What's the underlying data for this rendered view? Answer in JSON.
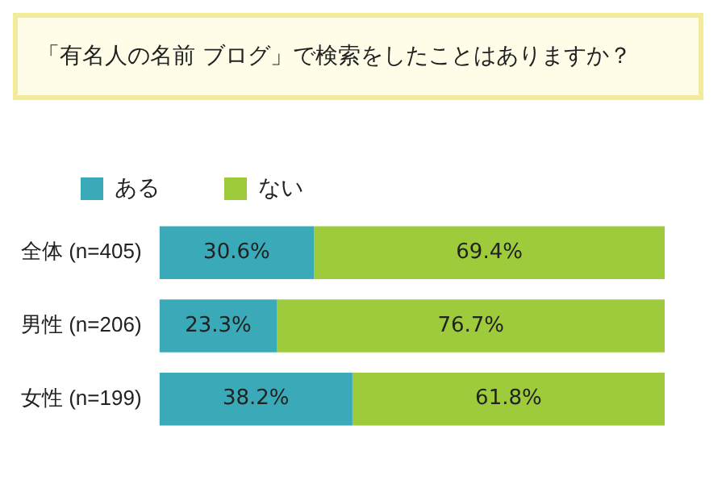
{
  "chart_data": {
    "type": "bar",
    "orientation": "horizontal",
    "stacked": true,
    "title": "「有名人の名前 ブログ」で検索をしたことはありますか？",
    "categories": [
      "全体 (n=405)",
      "男性 (n=206)",
      "女性 (n=199)"
    ],
    "legend": "top",
    "grid": false,
    "series": [
      {
        "name": "ある",
        "color": "#3aaab8",
        "values": [
          30.6,
          23.3,
          38.2
        ],
        "value_labels": [
          "30.6%",
          "23.3%",
          "38.2%"
        ]
      },
      {
        "name": "ない",
        "color": "#9dcb3b",
        "values": [
          69.4,
          76.7,
          61.8
        ],
        "value_labels": [
          "69.4%",
          "76.7%",
          "61.8%"
        ]
      }
    ]
  }
}
